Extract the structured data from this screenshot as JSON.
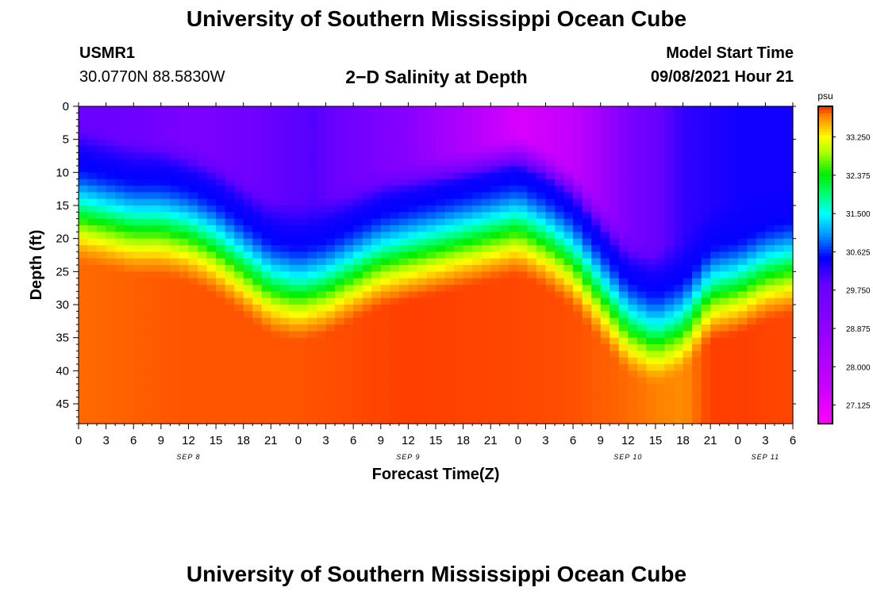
{
  "header": {
    "title": "University of Southern Mississippi Ocean Cube",
    "footer_title": "University of Southern Mississippi Ocean Cube",
    "station_id": "USMR1",
    "station_location": "30.0770N  88.5830W",
    "chart_heading": "2−D Salinity at Depth",
    "model_start_label": "Model Start Time",
    "model_start_time": "09/08/2021 Hour 21"
  },
  "chart_data": {
    "type": "heatmap",
    "title": "2−D Salinity at Depth",
    "xlabel": "Forecast Time(Z)",
    "ylabel": "Depth (ft)",
    "x_range_hours": [
      0,
      78
    ],
    "y_range_ft": [
      0,
      48
    ],
    "x_tick_labels": [
      "0",
      "3",
      "6",
      "9",
      "12",
      "15",
      "18",
      "21",
      "0",
      "3",
      "6",
      "9",
      "12",
      "15",
      "18",
      "21",
      "0",
      "3",
      "6",
      "9",
      "12",
      "15",
      "18",
      "21",
      "0",
      "3",
      "6"
    ],
    "date_labels": [
      {
        "label": "SEP 8",
        "hour": 12
      },
      {
        "label": "SEP 9",
        "hour": 36
      },
      {
        "label": "SEP 10",
        "hour": 60
      },
      {
        "label": "SEP 11",
        "hour": 75
      }
    ],
    "y_ticks": [
      0,
      5,
      10,
      15,
      20,
      25,
      30,
      35,
      40,
      45
    ],
    "colorbar": {
      "unit": "psu",
      "min": 26.7,
      "max": 33.95,
      "tick_labels": [
        "33.250",
        "32.375",
        "31.500",
        "30.625",
        "29.750",
        "28.875",
        "28.000",
        "27.125"
      ],
      "tick_values": [
        33.25,
        32.375,
        31.5,
        30.625,
        29.75,
        28.875,
        28.0,
        27.125
      ]
    },
    "colormap": [
      {
        "v": 26.7,
        "color": "#ff00ff"
      },
      {
        "v": 27.6,
        "color": "#c800ff"
      },
      {
        "v": 28.8,
        "color": "#9600ff"
      },
      {
        "v": 29.9,
        "color": "#6400ff"
      },
      {
        "v": 30.5,
        "color": "#0000ff"
      },
      {
        "v": 31.0,
        "color": "#0090ff"
      },
      {
        "v": 31.5,
        "color": "#00ffff"
      },
      {
        "v": 32.0,
        "color": "#00ff66"
      },
      {
        "v": 32.4,
        "color": "#00ee00"
      },
      {
        "v": 32.9,
        "color": "#aaff00"
      },
      {
        "v": 33.25,
        "color": "#ffff00"
      },
      {
        "v": 33.5,
        "color": "#ffc000"
      },
      {
        "v": 33.75,
        "color": "#ff8000"
      },
      {
        "v": 33.95,
        "color": "#ff2800"
      }
    ],
    "surface_salinity": {
      "hours": [
        0,
        6,
        12,
        18,
        22,
        26,
        30,
        36,
        42,
        48,
        54,
        60,
        66,
        72,
        78
      ],
      "values": [
        29.8,
        29.7,
        29.4,
        29.6,
        29.9,
        30.0,
        29.6,
        29.1,
        28.2,
        27.3,
        27.7,
        29.4,
        30.2,
        30.4,
        30.4
      ]
    },
    "halocline_depth_ft": {
      "hours": [
        0,
        3,
        6,
        9,
        12,
        15,
        18,
        21,
        24,
        27,
        30,
        33,
        36,
        39,
        42,
        45,
        48,
        51,
        54,
        57,
        60,
        63,
        66,
        69,
        72,
        75,
        78
      ],
      "values": [
        10,
        11,
        12,
        12,
        13,
        15,
        18,
        21,
        22,
        21,
        19,
        17,
        16,
        15,
        14,
        13,
        12,
        14,
        17,
        22,
        27,
        29,
        27,
        22,
        21,
        19,
        18
      ]
    },
    "bottom_salinity": {
      "hours": [
        0,
        12,
        24,
        36,
        48,
        54,
        60,
        66,
        69,
        72,
        78
      ],
      "values": [
        33.8,
        33.85,
        33.85,
        33.9,
        33.88,
        33.86,
        33.8,
        33.7,
        33.9,
        33.9,
        33.88
      ]
    },
    "gradient_thickness_ft": 16
  }
}
